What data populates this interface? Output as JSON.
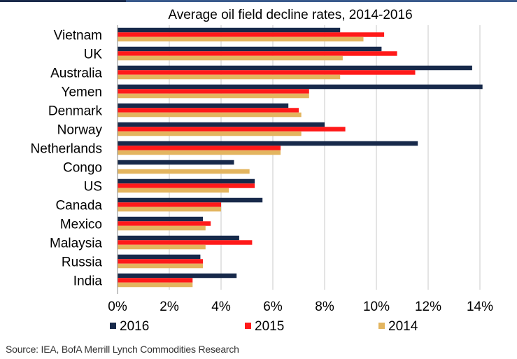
{
  "chart_data": {
    "type": "bar",
    "orientation": "horizontal",
    "title": "Average oil field decline rates, 2014-2016",
    "categories": [
      "Vietnam",
      "UK",
      "Australia",
      "Yemen",
      "Denmark",
      "Norway",
      "Netherlands",
      "Congo",
      "US",
      "Canada",
      "Mexico",
      "Malaysia",
      "Russia",
      "India"
    ],
    "series": [
      {
        "name": "2016",
        "color": "#17294a",
        "values": [
          8.6,
          10.2,
          13.7,
          14.1,
          6.6,
          8.0,
          11.6,
          4.5,
          5.3,
          5.6,
          3.3,
          4.7,
          3.2,
          4.6
        ]
      },
      {
        "name": "2015",
        "color": "#ff1a1a",
        "values": [
          10.3,
          10.8,
          11.5,
          7.4,
          7.0,
          8.8,
          6.3,
          0,
          5.3,
          4.0,
          3.6,
          5.2,
          3.3,
          2.9
        ]
      },
      {
        "name": "2014",
        "color": "#e3b55f",
        "values": [
          9.5,
          8.7,
          8.6,
          7.4,
          7.1,
          7.1,
          6.3,
          5.1,
          4.3,
          4.0,
          3.4,
          3.4,
          3.3,
          2.9
        ]
      }
    ],
    "xlim": [
      0,
      14
    ],
    "xticks": [
      "0%",
      "2%",
      "4%",
      "6%",
      "8%",
      "10%",
      "12%",
      "14%"
    ],
    "xgrid": true,
    "legend_position": "bottom",
    "xlabel": "",
    "ylabel": ""
  },
  "source_text": "Source: IEA, BofA Merrill Lynch Commodities Research"
}
